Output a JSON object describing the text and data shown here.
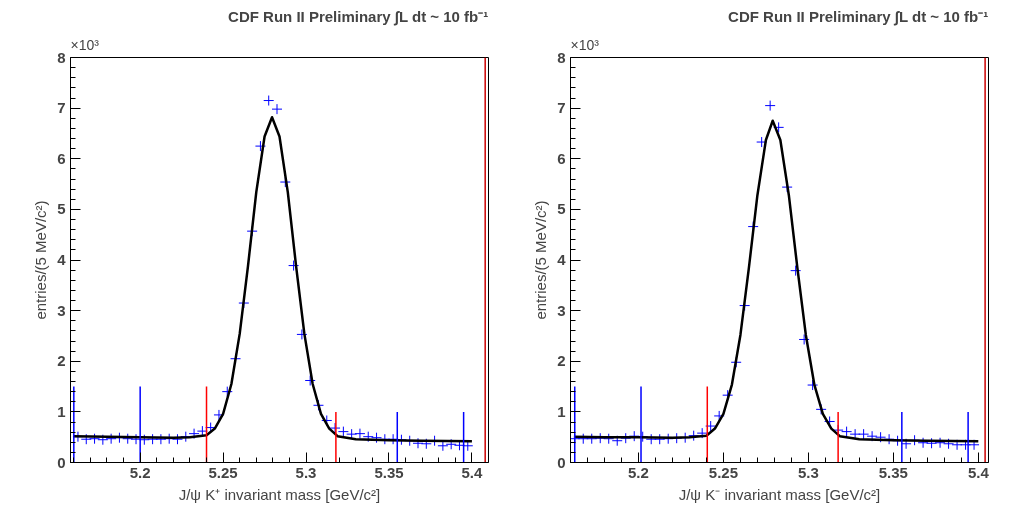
{
  "chart_data": [
    {
      "type": "scatter",
      "title": "CDF Run II Preliminary ∫L dt ~ 10 fb⁻¹",
      "xlabel": "J/ψ K⁺ invariant mass [GeV/c²]",
      "ylabel": "entries/(5 MeV/c²)",
      "annotations": [
        "×10³"
      ],
      "grid": false,
      "xlim": [
        5.158,
        5.41
      ],
      "ylim": [
        0,
        8
      ],
      "xticks": [
        {
          "value": 5.16,
          "label": null
        },
        {
          "value": 5.17,
          "label": null
        },
        {
          "value": 5.18,
          "label": null
        },
        {
          "value": 5.19,
          "label": null
        },
        5.2,
        {
          "value": 5.21,
          "label": null
        },
        {
          "value": 5.22,
          "label": null
        },
        {
          "value": 5.23,
          "label": null
        },
        {
          "value": 5.24,
          "label": null
        },
        5.25,
        {
          "value": 5.26,
          "label": null
        },
        {
          "value": 5.27,
          "label": null
        },
        {
          "value": 5.28,
          "label": null
        },
        {
          "value": 5.29,
          "label": null
        },
        5.3,
        {
          "value": 5.31,
          "label": null
        },
        {
          "value": 5.32,
          "label": null
        },
        {
          "value": 5.33,
          "label": null
        },
        {
          "value": 5.34,
          "label": null
        },
        5.35,
        {
          "value": 5.36,
          "label": null
        },
        {
          "value": 5.37,
          "label": null
        },
        {
          "value": 5.38,
          "label": null
        },
        {
          "value": 5.39,
          "label": null
        },
        5.4
      ],
      "yticks": [
        0,
        {
          "value": 0.2,
          "label": null
        },
        {
          "value": 0.4,
          "label": null
        },
        {
          "value": 0.6,
          "label": null
        },
        {
          "value": 0.8,
          "label": null
        },
        1,
        {
          "value": 1.2,
          "label": null
        },
        {
          "value": 1.4,
          "label": null
        },
        {
          "value": 1.6,
          "label": null
        },
        {
          "value": 1.8,
          "label": null
        },
        2,
        {
          "value": 2.2,
          "label": null
        },
        {
          "value": 2.4,
          "label": null
        },
        {
          "value": 2.6,
          "label": null
        },
        {
          "value": 2.8,
          "label": null
        },
        3,
        {
          "value": 3.2,
          "label": null
        },
        {
          "value": 3.4,
          "label": null
        },
        {
          "value": 3.6,
          "label": null
        },
        {
          "value": 3.8,
          "label": null
        },
        4,
        {
          "value": 4.2,
          "label": null
        },
        {
          "value": 4.4,
          "label": null
        },
        {
          "value": 4.6,
          "label": null
        },
        {
          "value": 4.8,
          "label": null
        },
        5,
        {
          "value": 5.2,
          "label": null
        },
        {
          "value": 5.4,
          "label": null
        },
        {
          "value": 5.6,
          "label": null
        },
        {
          "value": 5.8,
          "label": null
        },
        6,
        {
          "value": 6.2,
          "label": null
        },
        {
          "value": 6.4,
          "label": null
        },
        {
          "value": 6.6,
          "label": null
        },
        {
          "value": 6.8,
          "label": null
        },
        7,
        {
          "value": 7.2,
          "label": null
        },
        {
          "value": 7.4,
          "label": null
        },
        {
          "value": 7.6,
          "label": null
        },
        {
          "value": 7.8,
          "label": null
        },
        8
      ],
      "series": [
        {
          "marker": "cross",
          "color": "#0000ff",
          "x": [
            5.1625,
            5.1675,
            5.1725,
            5.1775,
            5.1825,
            5.1875,
            5.1925,
            5.1975,
            5.2025,
            5.2075,
            5.2125,
            5.2175,
            5.2225,
            5.2275,
            5.2325,
            5.2375,
            5.2425,
            5.2475,
            5.2525,
            5.2575,
            5.2625,
            5.2675,
            5.2725,
            5.2775,
            5.2825,
            5.2875,
            5.2925,
            5.2975,
            5.3025,
            5.3075,
            5.3125,
            5.3175,
            5.3225,
            5.3275,
            5.3325,
            5.3375,
            5.3425,
            5.3475,
            5.3525,
            5.3575,
            5.3625,
            5.3675,
            5.3725,
            5.3775,
            5.3825,
            5.3875,
            5.3925,
            5.3975
          ],
          "values": [
            0.51,
            0.46,
            0.47,
            0.45,
            0.47,
            0.49,
            0.47,
            0.46,
            0.45,
            0.46,
            0.46,
            0.47,
            0.46,
            0.51,
            0.57,
            0.62,
            0.69,
            0.94,
            1.4,
            2.05,
            3.15,
            4.57,
            6.25,
            7.15,
            6.98,
            5.54,
            3.89,
            2.53,
            1.62,
            1.13,
            0.83,
            0.68,
            0.61,
            0.56,
            0.57,
            0.51,
            0.49,
            0.46,
            0.46,
            0.45,
            0.43,
            0.38,
            0.37,
            0.43,
            0.33,
            0.36,
            0.34,
            0.33
          ]
        },
        {
          "type": "line",
          "color": "#000000",
          "x": [
            5.16,
            5.18,
            5.2,
            5.22,
            5.23,
            5.24,
            5.245,
            5.25,
            5.255,
            5.26,
            5.265,
            5.27,
            5.275,
            5.2795,
            5.284,
            5.289,
            5.294,
            5.299,
            5.304,
            5.309,
            5.314,
            5.319,
            5.33,
            5.35,
            5.37,
            5.4
          ],
          "values": [
            0.52,
            0.51,
            0.5,
            0.49,
            0.5,
            0.54,
            0.67,
            0.96,
            1.55,
            2.54,
            3.88,
            5.34,
            6.44,
            6.82,
            6.44,
            5.34,
            3.88,
            2.54,
            1.55,
            0.96,
            0.67,
            0.52,
            0.46,
            0.44,
            0.43,
            0.42
          ]
        },
        {
          "type": "line",
          "color": "#0000ff",
          "x": [
            5.16,
            5.16
          ],
          "values": [
            0,
            1.5
          ]
        },
        {
          "type": "line",
          "color": "#0000ff",
          "x": [
            5.2,
            5.2
          ],
          "values": [
            0,
            1.5
          ]
        },
        {
          "type": "line",
          "color": "#ff0000",
          "x": [
            5.24,
            5.24
          ],
          "values": [
            0,
            1.5
          ]
        },
        {
          "type": "line",
          "color": "#ff0000",
          "x": [
            5.318,
            5.318
          ],
          "values": [
            0,
            1
          ]
        },
        {
          "type": "line",
          "color": "#0000ff",
          "x": [
            5.355,
            5.355
          ],
          "values": [
            0,
            1
          ]
        },
        {
          "type": "line",
          "color": "#0000ff",
          "x": [
            5.395,
            5.395
          ],
          "values": [
            0,
            1
          ]
        },
        {
          "type": "line",
          "color": "#cc0000",
          "x": [
            5.408,
            5.408
          ],
          "values": [
            0,
            8
          ]
        }
      ]
    },
    {
      "type": "scatter",
      "title": "CDF Run II Preliminary ∫L dt ~ 10 fb⁻¹",
      "xlabel": "J/ψ K⁻ invariant mass [GeV/c²]",
      "ylabel": "entries/(5 MeV/c²)",
      "annotations": [
        "×10³"
      ],
      "grid": false,
      "xlim": [
        5.16,
        5.406
      ],
      "ylim": [
        0,
        8
      ],
      "xticks": [
        {
          "value": 5.17,
          "label": null
        },
        {
          "value": 5.18,
          "label": null
        },
        {
          "value": 5.19,
          "label": null
        },
        5.2,
        {
          "value": 5.21,
          "label": null
        },
        {
          "value": 5.22,
          "label": null
        },
        {
          "value": 5.23,
          "label": null
        },
        {
          "value": 5.24,
          "label": null
        },
        5.25,
        {
          "value": 5.26,
          "label": null
        },
        {
          "value": 5.27,
          "label": null
        },
        {
          "value": 5.28,
          "label": null
        },
        {
          "value": 5.29,
          "label": null
        },
        5.3,
        {
          "value": 5.31,
          "label": null
        },
        {
          "value": 5.32,
          "label": null
        },
        {
          "value": 5.33,
          "label": null
        },
        {
          "value": 5.34,
          "label": null
        },
        5.35,
        {
          "value": 5.36,
          "label": null
        },
        {
          "value": 5.37,
          "label": null
        },
        {
          "value": 5.38,
          "label": null
        },
        {
          "value": 5.39,
          "label": null
        },
        5.4
      ],
      "yticks": [
        0,
        {
          "value": 0.2,
          "label": null
        },
        {
          "value": 0.4,
          "label": null
        },
        {
          "value": 0.6,
          "label": null
        },
        {
          "value": 0.8,
          "label": null
        },
        1,
        {
          "value": 1.2,
          "label": null
        },
        {
          "value": 1.4,
          "label": null
        },
        {
          "value": 1.6,
          "label": null
        },
        {
          "value": 1.8,
          "label": null
        },
        2,
        {
          "value": 2.2,
          "label": null
        },
        {
          "value": 2.4,
          "label": null
        },
        {
          "value": 2.6,
          "label": null
        },
        {
          "value": 2.8,
          "label": null
        },
        3,
        {
          "value": 3.2,
          "label": null
        },
        {
          "value": 3.4,
          "label": null
        },
        {
          "value": 3.6,
          "label": null
        },
        {
          "value": 3.8,
          "label": null
        },
        4,
        {
          "value": 4.2,
          "label": null
        },
        {
          "value": 4.4,
          "label": null
        },
        {
          "value": 4.6,
          "label": null
        },
        {
          "value": 4.8,
          "label": null
        },
        5,
        {
          "value": 5.2,
          "label": null
        },
        {
          "value": 5.4,
          "label": null
        },
        {
          "value": 5.6,
          "label": null
        },
        {
          "value": 5.8,
          "label": null
        },
        6,
        {
          "value": 6.2,
          "label": null
        },
        {
          "value": 6.4,
          "label": null
        },
        {
          "value": 6.6,
          "label": null
        },
        {
          "value": 6.8,
          "label": null
        },
        7,
        {
          "value": 7.2,
          "label": null
        },
        {
          "value": 7.4,
          "label": null
        },
        {
          "value": 7.6,
          "label": null
        },
        {
          "value": 7.8,
          "label": null
        },
        8
      ],
      "series": [
        {
          "marker": "cross",
          "color": "#0000ff",
          "x": [
            5.1625,
            5.1675,
            5.1725,
            5.1775,
            5.1825,
            5.1875,
            5.1925,
            5.1975,
            5.2025,
            5.2075,
            5.2125,
            5.2175,
            5.2225,
            5.2275,
            5.2325,
            5.2375,
            5.2425,
            5.2475,
            5.2525,
            5.2575,
            5.2625,
            5.2675,
            5.2725,
            5.2775,
            5.2825,
            5.2875,
            5.2925,
            5.2975,
            5.3025,
            5.3075,
            5.3125,
            5.3175,
            5.3225,
            5.3275,
            5.3325,
            5.3375,
            5.3425,
            5.3475,
            5.3525,
            5.3575,
            5.3625,
            5.3675,
            5.3725,
            5.3775,
            5.3825,
            5.3875,
            5.3925,
            5.3975
          ],
          "values": [
            0.47,
            0.47,
            0.47,
            0.48,
            0.47,
            0.43,
            0.48,
            0.52,
            0.51,
            0.46,
            0.46,
            0.47,
            0.48,
            0.49,
            0.53,
            0.58,
            0.72,
            0.92,
            1.33,
            1.98,
            3.1,
            4.66,
            6.33,
            7.05,
            6.62,
            5.44,
            3.79,
            2.43,
            1.53,
            1.05,
            0.81,
            0.64,
            0.61,
            0.56,
            0.56,
            0.52,
            0.5,
            0.46,
            0.43,
            0.37,
            0.44,
            0.39,
            0.38,
            0.39,
            0.37,
            0.35,
            0.35,
            0.35
          ]
        },
        {
          "type": "line",
          "color": "#000000",
          "x": [
            5.162,
            5.18,
            5.2,
            5.22,
            5.23,
            5.24,
            5.245,
            5.25,
            5.255,
            5.26,
            5.265,
            5.27,
            5.275,
            5.279,
            5.2835,
            5.2885,
            5.2935,
            5.2985,
            5.3035,
            5.3085,
            5.3135,
            5.3185,
            5.33,
            5.35,
            5.37,
            5.4
          ],
          "values": [
            0.51,
            0.5,
            0.5,
            0.49,
            0.5,
            0.53,
            0.67,
            0.96,
            1.54,
            2.52,
            3.85,
            5.28,
            6.37,
            6.75,
            6.37,
            5.28,
            3.85,
            2.52,
            1.54,
            0.96,
            0.67,
            0.52,
            0.46,
            0.44,
            0.43,
            0.42
          ]
        },
        {
          "type": "line",
          "color": "#0000ff",
          "x": [
            5.1625,
            5.1625
          ],
          "values": [
            0,
            1.5
          ]
        },
        {
          "type": "line",
          "color": "#0000ff",
          "x": [
            5.2015,
            5.2015
          ],
          "values": [
            0,
            1.5
          ]
        },
        {
          "type": "line",
          "color": "#ff0000",
          "x": [
            5.2405,
            5.2405
          ],
          "values": [
            0,
            1.5
          ]
        },
        {
          "type": "line",
          "color": "#ff0000",
          "x": [
            5.3175,
            5.3175
          ],
          "values": [
            0,
            1
          ]
        },
        {
          "type": "line",
          "color": "#0000ff",
          "x": [
            5.355,
            5.355
          ],
          "values": [
            0,
            1
          ]
        },
        {
          "type": "line",
          "color": "#0000ff",
          "x": [
            5.394,
            5.394
          ],
          "values": [
            0,
            1
          ]
        },
        {
          "type": "line",
          "color": "#cc0000",
          "x": [
            5.404,
            5.404
          ],
          "values": [
            0,
            8
          ]
        }
      ]
    }
  ]
}
